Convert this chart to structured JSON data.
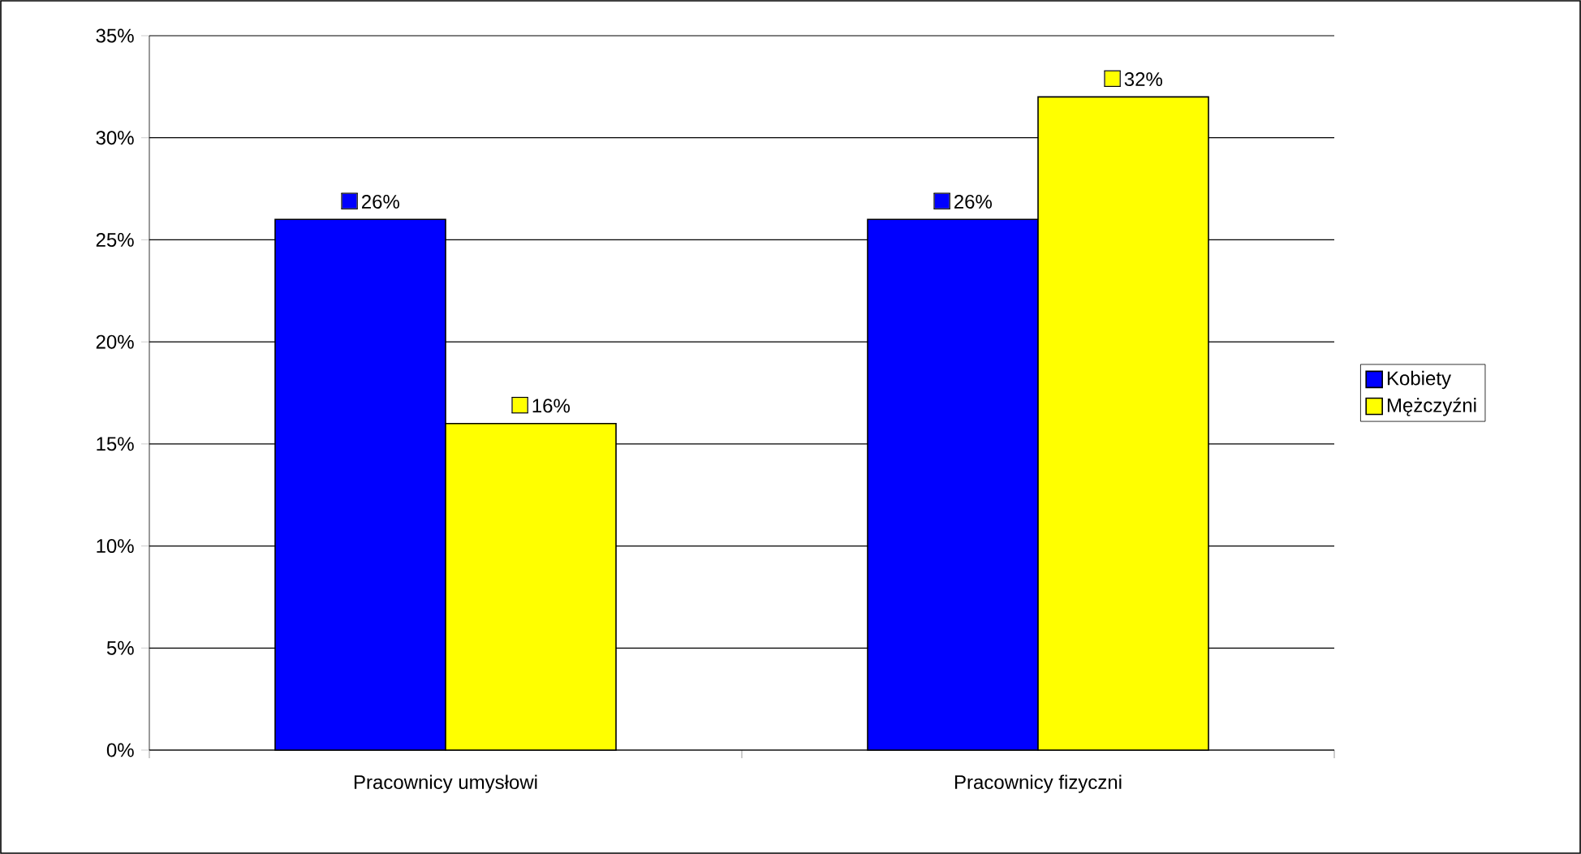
{
  "chart_data": {
    "type": "bar",
    "categories": [
      "Pracownicy umysłowi",
      "Pracownicy fizyczni"
    ],
    "series": [
      {
        "name": "Kobiety",
        "color": "#0000ff",
        "values": [
          26,
          26
        ],
        "value_labels": [
          "26%",
          "26%"
        ]
      },
      {
        "name": "Mężczyźni",
        "color": "#ffff00",
        "values": [
          16,
          32
        ],
        "value_labels": [
          "16%",
          "32%"
        ]
      }
    ],
    "ylim": [
      0,
      35
    ],
    "yticks": [
      {
        "value": 0,
        "label": "0%"
      },
      {
        "value": 5,
        "label": "5%"
      },
      {
        "value": 10,
        "label": "10%"
      },
      {
        "value": 15,
        "label": "15%"
      },
      {
        "value": 20,
        "label": "20%"
      },
      {
        "value": 25,
        "label": "25%"
      },
      {
        "value": 30,
        "label": "30%"
      },
      {
        "value": 35,
        "label": "35%"
      }
    ],
    "grid": "y",
    "legend": "right"
  }
}
